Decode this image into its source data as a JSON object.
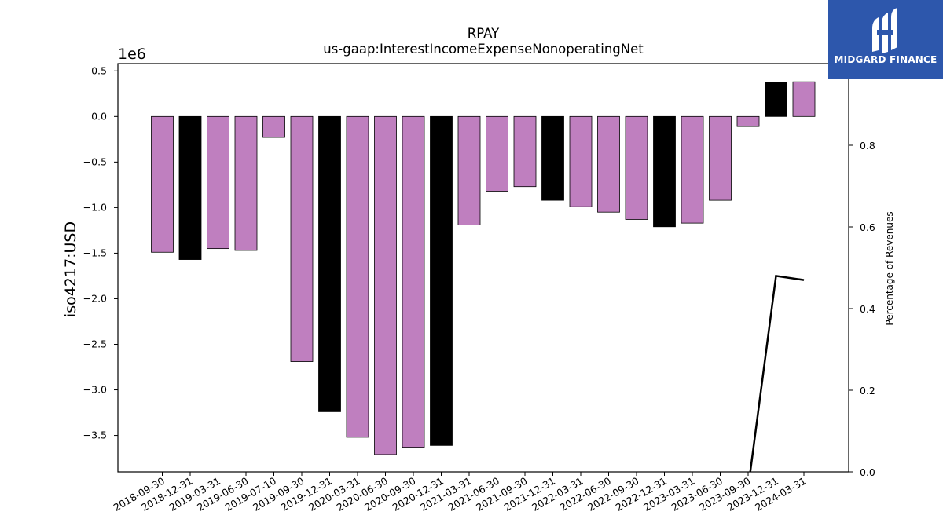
{
  "chart_data": {
    "type": "bar",
    "title": "RPAY",
    "subtitle": "us-gaap:InterestIncomeExpenseNonoperatingNet",
    "ylabel": "iso4217:USD",
    "y_offset_label": "1e6",
    "y2label": "Percentage of Revenues",
    "ylim": [
      -3.9,
      0.58
    ],
    "y2lim": [
      0.0,
      1.0
    ],
    "yticks": [
      "0.5",
      "0.0",
      "−0.5",
      "−1.0",
      "−1.5",
      "−2.0",
      "−2.5",
      "−3.0",
      "−3.5"
    ],
    "y2ticks": [
      "0.0",
      "0.2",
      "0.4",
      "0.6",
      "0.8"
    ],
    "categories": [
      "2018-09-30",
      "2018-12-31",
      "2019-03-31",
      "2019-06-30",
      "2019-07-10",
      "2019-09-30",
      "2019-12-31",
      "2020-03-31",
      "2020-06-30",
      "2020-09-30",
      "2020-12-31",
      "2021-03-31",
      "2021-06-30",
      "2021-09-30",
      "2021-12-31",
      "2022-03-31",
      "2022-06-30",
      "2022-09-30",
      "2022-12-31",
      "2023-03-31",
      "2023-06-30",
      "2023-09-30",
      "2023-12-31",
      "2024-03-31"
    ],
    "values": [
      -1.49,
      -1.57,
      -1.45,
      -1.47,
      -0.23,
      -2.69,
      -3.24,
      -3.52,
      -3.71,
      -3.63,
      -3.61,
      -1.19,
      -0.82,
      -0.77,
      -0.92,
      -0.99,
      -1.05,
      -1.13,
      -1.21,
      -1.17,
      -0.92,
      -0.11,
      0.37,
      0.38
    ],
    "bar_colors": [
      "#bf7fbf",
      "#000000",
      "#bf7fbf",
      "#bf7fbf",
      "#bf7fbf",
      "#bf7fbf",
      "#000000",
      "#bf7fbf",
      "#bf7fbf",
      "#bf7fbf",
      "#000000",
      "#bf7fbf",
      "#bf7fbf",
      "#bf7fbf",
      "#000000",
      "#bf7fbf",
      "#bf7fbf",
      "#bf7fbf",
      "#000000",
      "#bf7fbf",
      "#bf7fbf",
      "#bf7fbf",
      "#000000",
      "#bf7fbf"
    ],
    "line_series": {
      "x_index": [
        21,
        22,
        23
      ],
      "values": [
        -0.04,
        0.48,
        0.47
      ],
      "color": "#000000"
    },
    "grid": false
  },
  "logo": {
    "text": "MIDGARD FINANCE",
    "background": "#2d57ac"
  }
}
